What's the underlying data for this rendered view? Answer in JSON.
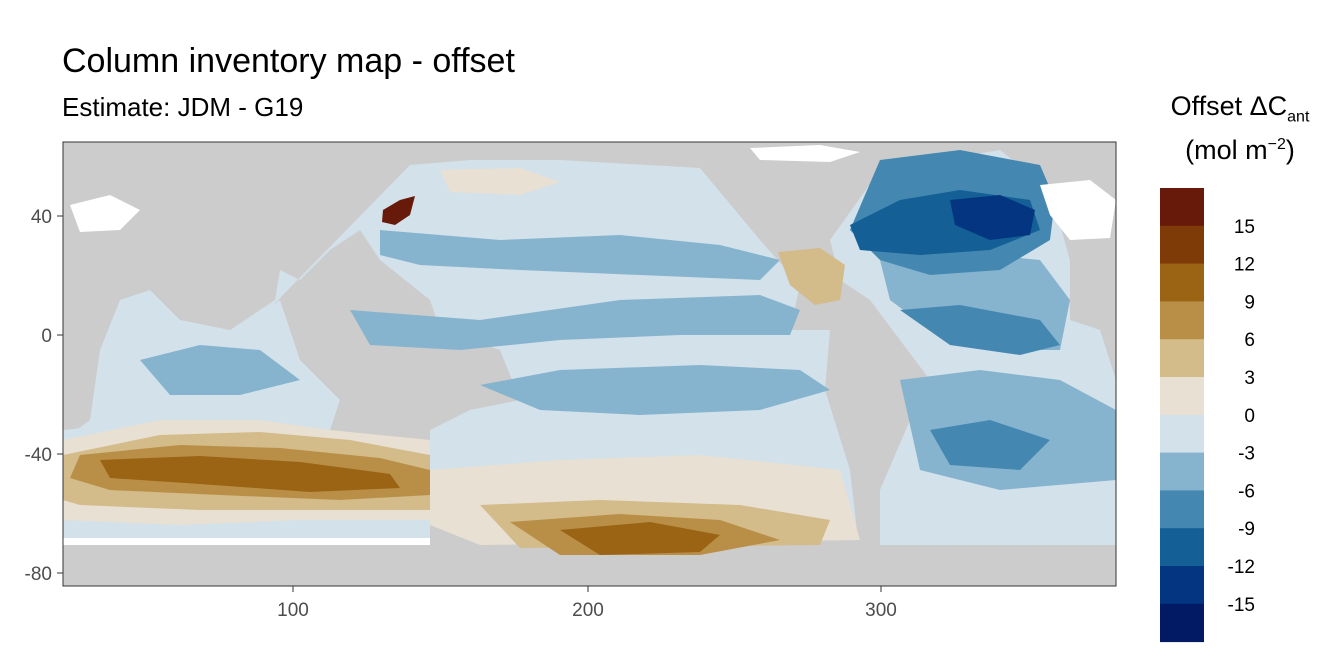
{
  "title": "Column inventory map - offset",
  "subtitle": "Estimate: JDM - G19",
  "legend": {
    "title_main": "Offset ΔC",
    "title_sub": "ant",
    "unit_open": "(mol m",
    "unit_sup": "−2",
    "unit_close": ")",
    "breaks": [
      "15",
      "12",
      "9",
      "6",
      "3",
      "0",
      "-3",
      "-6",
      "-9",
      "-12",
      "-15"
    ],
    "colors": [
      "#67190a",
      "#7e3a07",
      "#9a6414",
      "#b98f48",
      "#d3bb8a",
      "#e8e0d2",
      "#d3e1ea",
      "#86b4cf",
      "#4488b2",
      "#135f96",
      "#033580",
      "#021964"
    ]
  },
  "axes": {
    "x_ticks": [
      "100",
      "200",
      "300"
    ],
    "y_ticks": [
      "40",
      "0",
      "-40",
      "-80"
    ]
  },
  "colors": {
    "land": "#cccccc",
    "panel_border": "#333333",
    "ice_white": "#ffffff"
  }
}
